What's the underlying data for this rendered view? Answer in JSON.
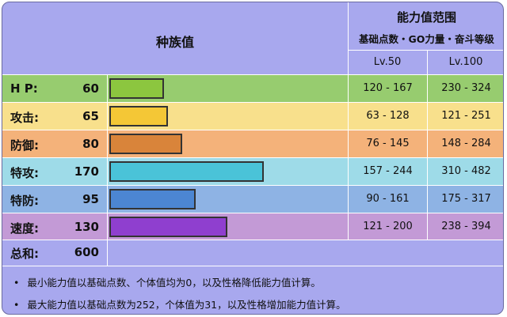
{
  "header": {
    "base_stats_title": "种族值",
    "range_title": "能力值范围",
    "range_subtitle": "基础点数・GO力量・奋斗等级",
    "lv50": "Lv.50",
    "lv100": "Lv.100"
  },
  "max_stat": 255,
  "stats": [
    {
      "label": "H P:",
      "value": "60",
      "num": 60,
      "lv50": "120 - 167",
      "lv100": "230 - 324",
      "row_color": "#97cc6f",
      "bar_color": "#8cc63f"
    },
    {
      "label": "攻击:",
      "value": "65",
      "num": 65,
      "lv50": "63 - 128",
      "lv100": "121 - 251",
      "row_color": "#f8e08c",
      "bar_color": "#f4c736"
    },
    {
      "label": "防御:",
      "value": "80",
      "num": 80,
      "lv50": "76 - 145",
      "lv100": "148 - 284",
      "row_color": "#f4b27a",
      "bar_color": "#d9843a"
    },
    {
      "label": "特攻:",
      "value": "170",
      "num": 170,
      "lv50": "157 - 244",
      "lv100": "310 - 482",
      "row_color": "#9edbe8",
      "bar_color": "#4ac3d8"
    },
    {
      "label": "特防:",
      "value": "95",
      "num": 95,
      "lv50": "90 - 161",
      "lv100": "175 - 317",
      "row_color": "#8eb3e4",
      "bar_color": "#4c86d2"
    },
    {
      "label": "速度:",
      "value": "130",
      "num": 130,
      "lv50": "121 - 200",
      "lv100": "238 - 394",
      "row_color": "#c39ad6",
      "bar_color": "#8f3fcf"
    }
  ],
  "total": {
    "label": "总和:",
    "value": "600"
  },
  "notes": [
    "最小能力值以基础点数、个体值均为0，以及性格降低能力值计算。",
    "最大能力值以基础点数为252，个体值为31，以及性格增加能力值计算。"
  ]
}
